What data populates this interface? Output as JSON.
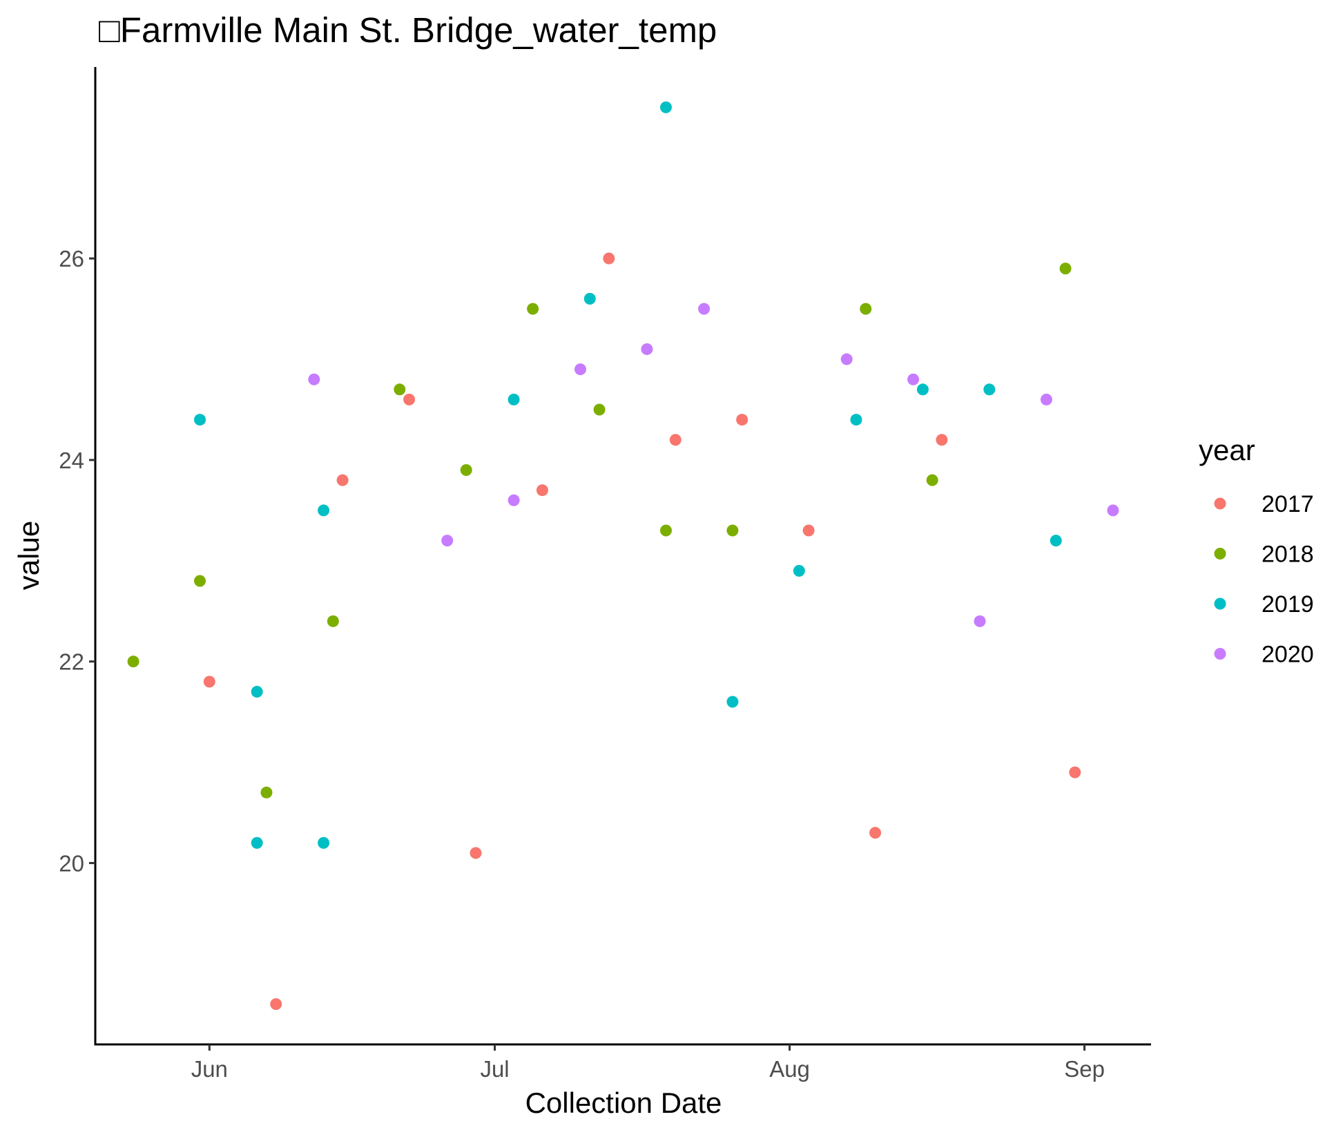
{
  "chart_data": {
    "type": "scatter",
    "title": "□Farmville Main St. Bridge_water_temp",
    "xlabel": "Collection Date",
    "ylabel": "value",
    "x_axis": {
      "type": "date",
      "domain": [
        "05-20",
        "09-08"
      ],
      "ticks": [
        {
          "value": "06-01",
          "label": "Jun"
        },
        {
          "value": "07-01",
          "label": "Jul"
        },
        {
          "value": "08-01",
          "label": "Aug"
        },
        {
          "value": "09-01",
          "label": "Sep"
        }
      ]
    },
    "y_axis": {
      "domain": [
        18.2,
        27.9
      ],
      "ticks": [
        20,
        22,
        24,
        26
      ]
    },
    "grid": false,
    "legend": {
      "title": "year",
      "position": "right"
    },
    "series": [
      {
        "name": "2017",
        "color": "#F8766D",
        "points": [
          [
            "06-01",
            21.8
          ],
          [
            "06-08",
            18.6
          ],
          [
            "06-15",
            23.8
          ],
          [
            "06-22",
            24.6
          ],
          [
            "06-29",
            20.1
          ],
          [
            "07-06",
            23.7
          ],
          [
            "07-13",
            26.0
          ],
          [
            "07-20",
            24.2
          ],
          [
            "07-27",
            24.4
          ],
          [
            "08-03",
            23.3
          ],
          [
            "08-10",
            20.3
          ],
          [
            "08-17",
            24.2
          ],
          [
            "08-31",
            20.9
          ]
        ]
      },
      {
        "name": "2018",
        "color": "#7CAE00",
        "points": [
          [
            "05-24",
            22.0
          ],
          [
            "05-31",
            22.8
          ],
          [
            "06-07",
            20.7
          ],
          [
            "06-14",
            22.4
          ],
          [
            "06-21",
            24.7
          ],
          [
            "06-28",
            23.9
          ],
          [
            "07-05",
            25.5
          ],
          [
            "07-12",
            24.5
          ],
          [
            "07-19",
            23.3
          ],
          [
            "07-26",
            23.3
          ],
          [
            "08-09",
            25.5
          ],
          [
            "08-16",
            23.8
          ],
          [
            "08-30",
            25.9
          ]
        ]
      },
      {
        "name": "2019",
        "color": "#00BFC4",
        "points": [
          [
            "05-31",
            24.4
          ],
          [
            "06-06",
            21.7
          ],
          [
            "06-06",
            20.2
          ],
          [
            "06-13",
            23.5
          ],
          [
            "06-13",
            20.2
          ],
          [
            "07-03",
            24.6
          ],
          [
            "07-11",
            25.6
          ],
          [
            "07-19",
            27.5
          ],
          [
            "07-26",
            21.6
          ],
          [
            "08-02",
            22.9
          ],
          [
            "08-08",
            24.4
          ],
          [
            "08-15",
            24.7
          ],
          [
            "08-22",
            24.7
          ],
          [
            "08-29",
            23.2
          ]
        ]
      },
      {
        "name": "2020",
        "color": "#C77CFF",
        "points": [
          [
            "06-12",
            24.8
          ],
          [
            "06-26",
            23.2
          ],
          [
            "07-03",
            23.6
          ],
          [
            "07-10",
            24.9
          ],
          [
            "07-17",
            25.1
          ],
          [
            "07-23",
            25.5
          ],
          [
            "08-07",
            25.0
          ],
          [
            "08-14",
            24.8
          ],
          [
            "08-21",
            22.4
          ],
          [
            "08-28",
            24.6
          ],
          [
            "09-04",
            23.5
          ]
        ]
      }
    ]
  }
}
